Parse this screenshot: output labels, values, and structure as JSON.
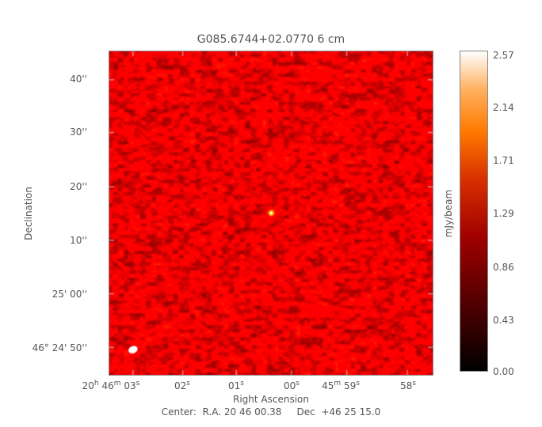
{
  "title": "G085.6744+02.0770 6 cm",
  "y_axis": {
    "label": "Declination",
    "ticks": [
      "40''",
      "30''",
      "20''",
      "10''",
      "25' 00''",
      "24' 50''"
    ],
    "tick_prefix": "46°"
  },
  "x_axis": {
    "label": "Right Ascension",
    "ticks": [
      {
        "h": "20",
        "m": "46",
        "s": "03"
      },
      {
        "s": "02"
      },
      {
        "s": "01"
      },
      {
        "s": "00"
      },
      {
        "m": "45",
        "s": "59"
      },
      {
        "s": "58"
      }
    ]
  },
  "footer": "Center:  R.A. 20 46 00.38     Dec  +46 25 15.0",
  "colorbar": {
    "label": "mJy/beam",
    "ticks": [
      "2.57",
      "2.14",
      "1.71",
      "1.29",
      "0.86",
      "0.43",
      "0.00"
    ],
    "colormap": "heat"
  }
}
